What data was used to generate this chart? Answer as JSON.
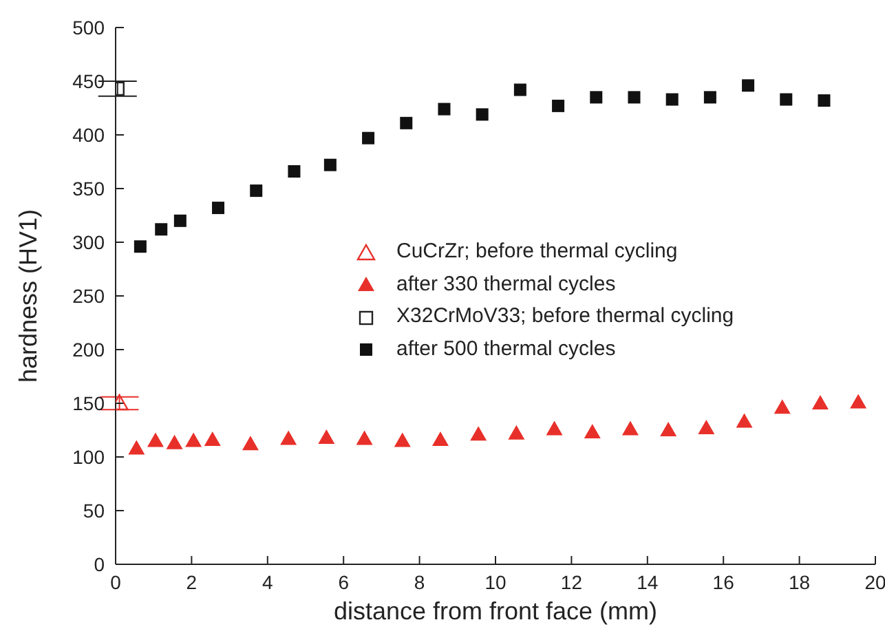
{
  "chart_data": {
    "type": "scatter",
    "xlabel": "distance from front face (mm)",
    "ylabel": "hardness (HV1)",
    "xlim": [
      0,
      20
    ],
    "xticks": [
      0,
      2,
      4,
      6,
      8,
      10,
      12,
      14,
      16,
      18,
      20
    ],
    "ylim": [
      0,
      500
    ],
    "yticks": [
      0,
      50,
      100,
      150,
      200,
      250,
      300,
      350,
      400,
      450,
      500
    ],
    "legend": "right",
    "series": [
      {
        "name": "CuCrZr; before thermal cycling",
        "color": "#e8302a",
        "marker": "triangle",
        "x": [
          0.1
        ],
        "values": [
          150
        ],
        "errors": [
          6
        ]
      },
      {
        "name": "after 330 thermal cycles",
        "color": "#e8302a",
        "marker": "triangle",
        "x": [
          0.55,
          1.05,
          1.55,
          2.05,
          2.55,
          3.55,
          4.55,
          5.55,
          6.55,
          7.55,
          8.55,
          9.55,
          10.55,
          11.55,
          12.55,
          13.55,
          14.55,
          15.55,
          16.55,
          17.55,
          18.55,
          19.55
        ],
        "values": [
          108,
          115,
          113,
          115,
          116,
          112,
          117,
          118,
          117,
          115,
          116,
          121,
          122,
          126,
          123,
          126,
          125,
          127,
          133,
          146,
          150,
          151
        ]
      },
      {
        "name": "X32CrMoV33; before thermal cycling",
        "color": "#222222",
        "marker": "square",
        "x": [
          0.05
        ],
        "values": [
          443
        ],
        "errors": [
          7
        ]
      },
      {
        "name": "after 500 thermal cycles",
        "color": "#111111",
        "marker": "square",
        "x": [
          0.65,
          1.2,
          1.7,
          2.7,
          3.7,
          4.7,
          5.65,
          6.65,
          7.65,
          8.65,
          9.65,
          10.65,
          11.65,
          12.65,
          13.65,
          14.65,
          15.65,
          16.65,
          17.65,
          18.65
        ],
        "values": [
          296,
          312,
          320,
          332,
          348,
          366,
          372,
          397,
          411,
          424,
          419,
          442,
          427,
          435,
          435,
          433,
          435,
          446,
          433,
          432
        ]
      }
    ]
  }
}
